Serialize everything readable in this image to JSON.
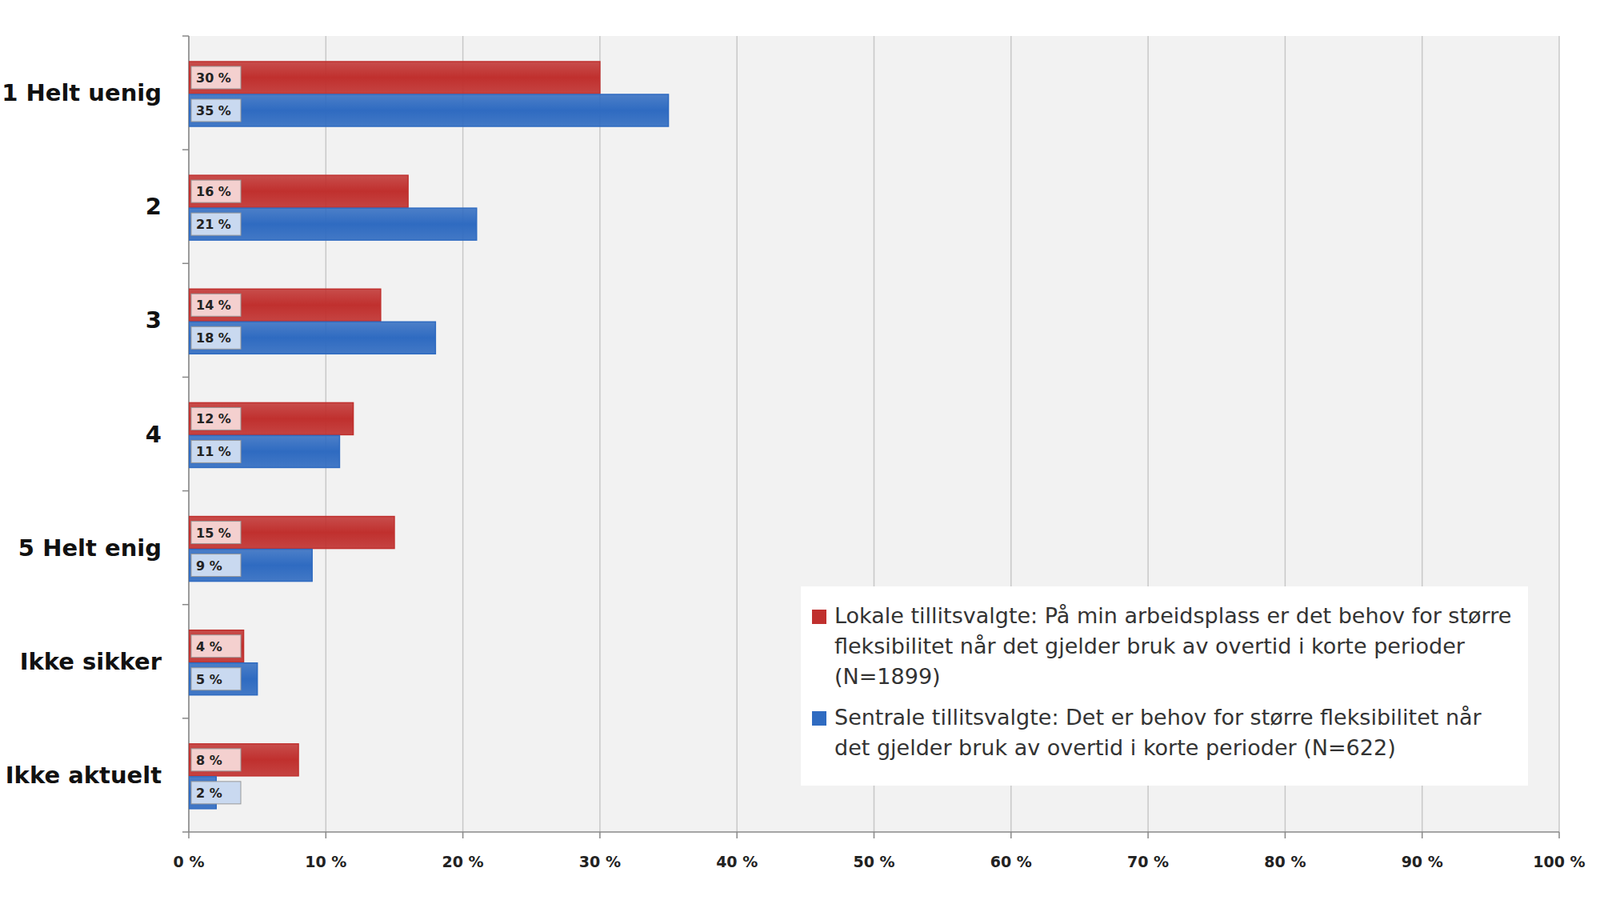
{
  "chart_data": {
    "type": "bar",
    "orientation": "horizontal",
    "categories": [
      "1 Helt uenig",
      "2",
      "3",
      "4",
      "5 Helt enig",
      "Ikke sikker",
      "Ikke aktuelt"
    ],
    "series": [
      {
        "name": "Lokale tillitsvalgte:  På min arbeidsplass er det behov for større fleksibilitet når det gjelder bruk av overtid i korte perioder (N=1899)",
        "color": "#c0302e",
        "values": [
          30,
          16,
          14,
          12,
          15,
          4,
          8
        ],
        "value_labels": [
          "30 %",
          "16 %",
          "14 %",
          "12 %",
          "15 %",
          "4 %",
          "8 %"
        ]
      },
      {
        "name": "Sentrale tillitsvalgte:  Det er behov for større fleksibilitet når det gjelder bruk av overtid i korte perioder (N=622)",
        "color": "#2f6bc1",
        "values": [
          35,
          21,
          18,
          11,
          9,
          5,
          2
        ],
        "value_labels": [
          "35 %",
          "21 %",
          "18 %",
          "11 %",
          "9 %",
          "5 %",
          "2 %"
        ]
      }
    ],
    "xlim": [
      0,
      100
    ],
    "xticks": [
      {
        "value": 0,
        "label": "0 %"
      },
      {
        "value": 10,
        "label": "10 %"
      },
      {
        "value": 20,
        "label": "20 %"
      },
      {
        "value": 30,
        "label": "30 %"
      },
      {
        "value": 40,
        "label": "40 %"
      },
      {
        "value": 50,
        "label": "50 %"
      },
      {
        "value": 60,
        "label": "60 %"
      },
      {
        "value": 70,
        "label": "70 %"
      },
      {
        "value": 80,
        "label": "80 %"
      },
      {
        "value": 90,
        "label": "90 %"
      },
      {
        "value": 100,
        "label": "100 %"
      }
    ],
    "grid": true,
    "legend": "lower right",
    "data_labels": true
  }
}
